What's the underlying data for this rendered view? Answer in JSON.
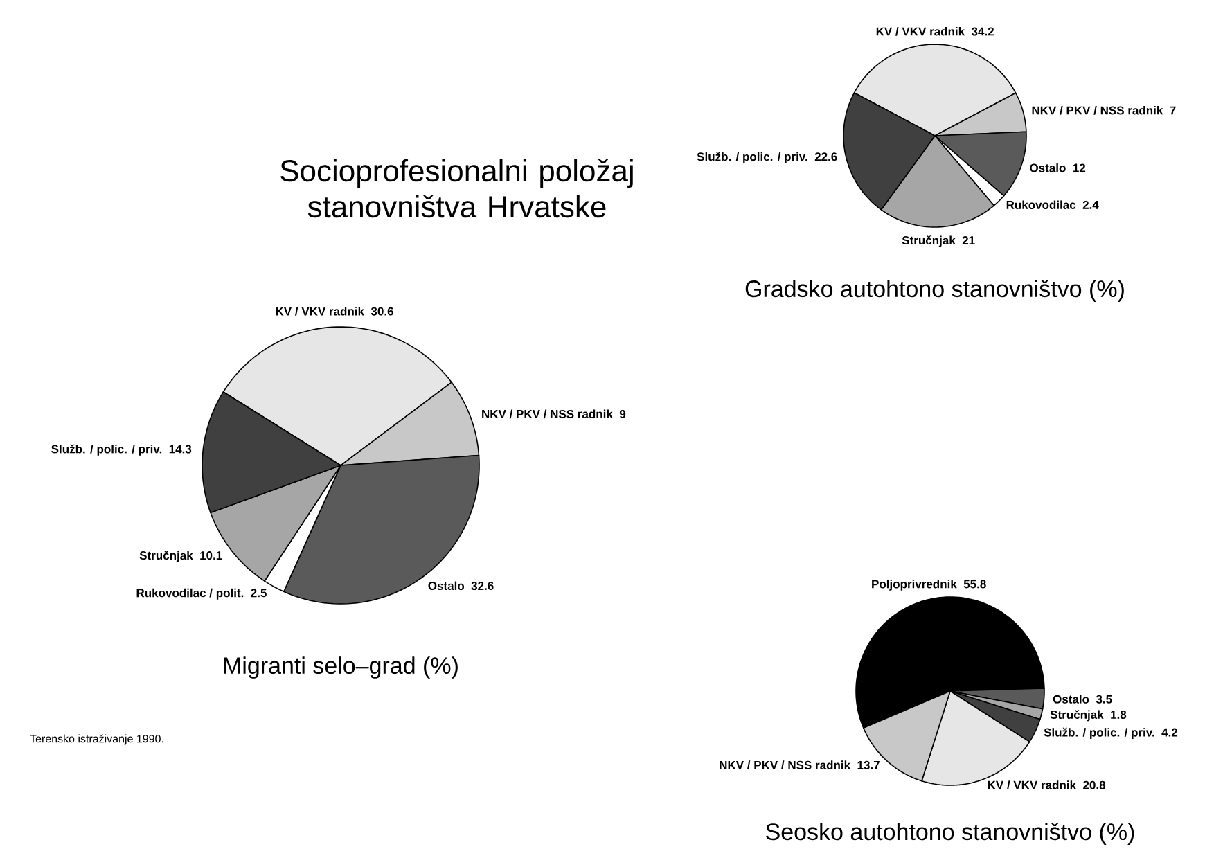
{
  "chart_data": [
    {
      "type": "pie",
      "title": "Migranti selo–grad (%)",
      "categories": [
        "KV / VKV radnik",
        "NKV / PKV / NSS radnik",
        "Ostalo",
        "Rukovodilac / polit.",
        "Stručnjak",
        "Služb. / polic. / priv."
      ],
      "values": [
        30.6,
        9,
        32.6,
        2.5,
        10.1,
        14.3
      ],
      "colors": [
        "#e6e6e6",
        "#c8c8c8",
        "#5a5a5a",
        "#ffffff",
        "#a6a6a6",
        "#404040"
      ],
      "data_labels": true,
      "annotations": [
        "Socioprofesionalni položaj stanovništva Hrvatske",
        "Terensko istraživanje 1990."
      ]
    },
    {
      "type": "pie",
      "title": "Gradsko autohtono stanovništvo (%)",
      "categories": [
        "KV / VKV radnik",
        "NKV / PKV / NSS radnik",
        "Ostalo",
        "Rukovodilac",
        "Stručnjak",
        "Služb. / polic. / priv."
      ],
      "values": [
        34.2,
        7,
        12,
        2.4,
        21,
        22.6
      ],
      "colors": [
        "#e6e6e6",
        "#c8c8c8",
        "#5a5a5a",
        "#ffffff",
        "#a6a6a6",
        "#404040"
      ],
      "data_labels": true
    },
    {
      "type": "pie",
      "title": "Seosko autohtono stanovništvo (%)",
      "categories": [
        "Poljoprivrednik",
        "Ostalo",
        "Stručnjak",
        "Služb. / polic. / priv.",
        "KV / VKV radnik",
        "NKV / PKV / NSS radnik"
      ],
      "values": [
        55.8,
        3.5,
        1.8,
        4.2,
        20.8,
        13.7
      ],
      "colors": [
        "#000000",
        "#5a5a5a",
        "#a6a6a6",
        "#404040",
        "#e6e6e6",
        "#c8c8c8"
      ],
      "data_labels": true
    }
  ]
}
